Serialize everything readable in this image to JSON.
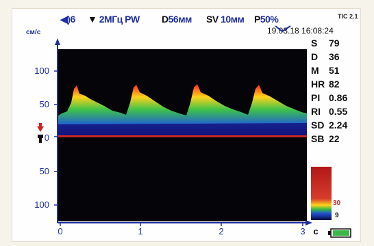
{
  "header": {
    "volume_label": "6",
    "probe_freq": "2МГц",
    "mode": "PW",
    "depth_label": "D",
    "depth_value": "56мм",
    "sv_label": "SV",
    "sv_value": "10мм",
    "power_label": "P",
    "power_value": "50%",
    "tis": "TIC 2.1",
    "datetime": "19.03.18 16:08:24"
  },
  "axis": {
    "y_unit": "см/с",
    "y_ticks": [
      "100",
      "50",
      "0",
      "50",
      "100"
    ],
    "x_ticks": [
      "0",
      "1",
      "2",
      "3"
    ],
    "x_unit": "c"
  },
  "measurements": [
    {
      "label": "S",
      "value": "79"
    },
    {
      "label": "D",
      "value": "36"
    },
    {
      "label": "M",
      "value": "51"
    },
    {
      "label": "HR",
      "value": "82"
    },
    {
      "label": "PI",
      "value": "0.86"
    },
    {
      "label": "RI",
      "value": "0.55"
    },
    {
      "label": "SD",
      "value": "2.24"
    },
    {
      "label": "SB",
      "value": "22"
    }
  ],
  "color_scale": {
    "top": "30",
    "bottom": "9"
  },
  "colors": {
    "accent": "#1f2fa0",
    "baseline": "#c62828",
    "battery": "#3cb84a"
  },
  "icons": {
    "volume": "speaker-icon",
    "probe": "probe-icon",
    "baseline_marker": "arrow-down-icon",
    "direction": "check-icon",
    "battery": "battery-icon"
  }
}
